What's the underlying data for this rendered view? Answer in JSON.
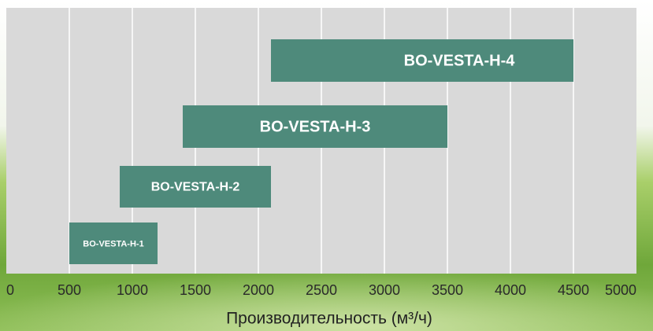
{
  "chart_data": {
    "type": "range-bar",
    "x_label": "Производительность (м³/ч)",
    "categories": [
      "BO-VESTA-H-1",
      "BO-VESTA-H-2",
      "BO-VESTA-H-3",
      "BO-VESTA-H-4"
    ],
    "starts": [
      500,
      900,
      1400,
      2100
    ],
    "ends": [
      1200,
      2100,
      3500,
      4500
    ],
    "color": "#4e8a7b",
    "xlim": [
      0,
      5000
    ],
    "xticks": [
      0,
      500,
      1000,
      1500,
      2000,
      2500,
      3000,
      3500,
      4000,
      4500,
      5000
    ],
    "grid": true
  }
}
